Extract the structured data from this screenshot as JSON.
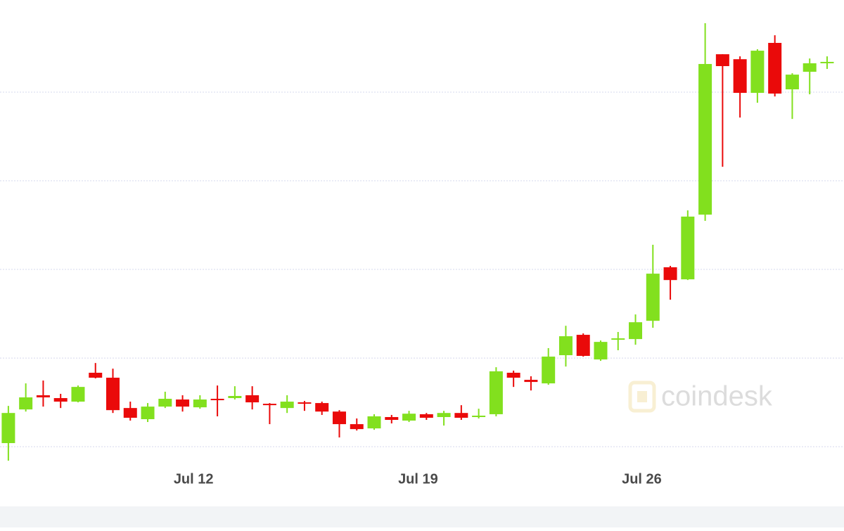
{
  "chart_data": {
    "type": "candlestick",
    "watermark": "coindesk",
    "up_color": "#82e01e",
    "down_color": "#ea0a0a",
    "grid": true,
    "ylim": [
      8663,
      11520
    ],
    "grid_values": [
      9000,
      9500,
      10000,
      10500,
      11000
    ],
    "xlim": [
      -0.48,
      47.97
    ],
    "xticks": [
      {
        "value": 10.63,
        "label": "Jul 12"
      },
      {
        "value": 23.52,
        "label": "Jul 19"
      },
      {
        "value": 36.36,
        "label": "Jul 26"
      }
    ],
    "open": [
      9020,
      9210,
      9290,
      9274,
      9254,
      9417,
      9389,
      9218,
      9155,
      9226,
      9266,
      9222,
      9270,
      9274,
      9290,
      9242,
      9218,
      9250,
      9246,
      9198,
      9127,
      9103,
      9167,
      9147,
      9183,
      9167,
      9190,
      9167,
      9183,
      9417,
      9377,
      9357,
      9516,
      9631,
      9492,
      9603,
      9607,
      9710,
      10012,
      9944,
      10309,
      11214,
      11186,
      10996,
      11278,
      11016,
      11115,
      11167
    ],
    "high": [
      9230,
      9357,
      9373,
      9298,
      9345,
      9472,
      9440,
      9254,
      9246,
      9310,
      9290,
      9290,
      9345,
      9341,
      9341,
      9246,
      9290,
      9258,
      9254,
      9206,
      9159,
      9183,
      9179,
      9202,
      9190,
      9202,
      9234,
      9214,
      9448,
      9429,
      9397,
      9556,
      9682,
      9639,
      9599,
      9647,
      9746,
      10139,
      10020,
      10333,
      11389,
      11214,
      11202,
      11242,
      11321,
      11107,
      11190,
      11202
    ],
    "low": [
      8921,
      9198,
      9226,
      9218,
      9250,
      9385,
      9190,
      9147,
      9139,
      9218,
      9198,
      9214,
      9171,
      9266,
      9210,
      9127,
      9190,
      9202,
      9179,
      9052,
      9091,
      9095,
      9131,
      9139,
      9151,
      9119,
      9151,
      9159,
      9171,
      9337,
      9317,
      9349,
      9452,
      9508,
      9484,
      9544,
      9575,
      9671,
      9829,
      9940,
      10274,
      10579,
      10857,
      10940,
      10976,
      10849,
      10988,
      11131
    ],
    "close": [
      9190,
      9278,
      9278,
      9254,
      9337,
      9389,
      9206,
      9163,
      9226,
      9270,
      9226,
      9266,
      9266,
      9286,
      9250,
      9234,
      9254,
      9242,
      9198,
      9127,
      9099,
      9171,
      9151,
      9186,
      9163,
      9190,
      9163,
      9175,
      9425,
      9389,
      9365,
      9508,
      9623,
      9512,
      9591,
      9611,
      9702,
      9976,
      9940,
      10298,
      11159,
      11147,
      10996,
      11234,
      10992,
      11099,
      11163,
      11171
    ]
  }
}
